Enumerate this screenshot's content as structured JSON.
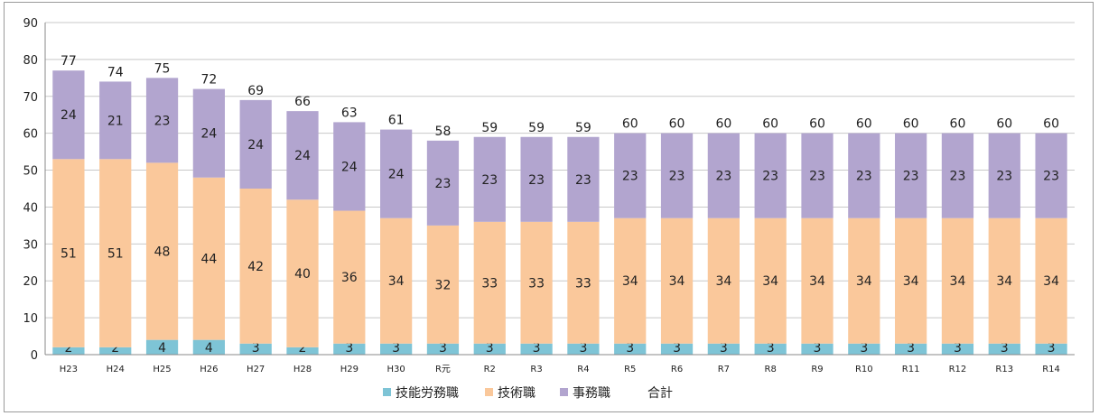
{
  "chart_data": {
    "type": "bar",
    "stacked": true,
    "title": "",
    "xlabel": "",
    "ylabel": "",
    "ylim": [
      0,
      90
    ],
    "yticks": [
      0,
      10,
      20,
      30,
      40,
      50,
      60,
      70,
      80,
      90
    ],
    "grid": true,
    "legend_position": "bottom",
    "categories": [
      "H23",
      "H24",
      "H25",
      "H26",
      "H27",
      "H28",
      "H29",
      "H30",
      "R元",
      "R2",
      "R3",
      "R4",
      "R5",
      "R6",
      "R7",
      "R8",
      "R9",
      "R10",
      "R11",
      "R12",
      "R13",
      "R14"
    ],
    "series": [
      {
        "name": "技能労務職",
        "color": "#7ec4d6",
        "values": [
          2,
          2,
          4,
          4,
          3,
          2,
          3,
          3,
          3,
          3,
          3,
          3,
          3,
          3,
          3,
          3,
          3,
          3,
          3,
          3,
          3,
          3
        ]
      },
      {
        "name": "技術職",
        "color": "#fac89b",
        "values": [
          51,
          51,
          48,
          44,
          42,
          40,
          36,
          34,
          32,
          33,
          33,
          33,
          34,
          34,
          34,
          34,
          34,
          34,
          34,
          34,
          34,
          34
        ]
      },
      {
        "name": "事務職",
        "color": "#b2a5cf",
        "values": [
          24,
          21,
          23,
          24,
          24,
          24,
          24,
          24,
          23,
          23,
          23,
          23,
          23,
          23,
          23,
          23,
          23,
          23,
          23,
          23,
          23,
          23
        ]
      }
    ],
    "totals_legend_name": "合計",
    "totals": [
      77,
      74,
      75,
      72,
      69,
      66,
      63,
      61,
      58,
      59,
      59,
      59,
      60,
      60,
      60,
      60,
      60,
      60,
      60,
      60,
      60,
      60
    ]
  }
}
